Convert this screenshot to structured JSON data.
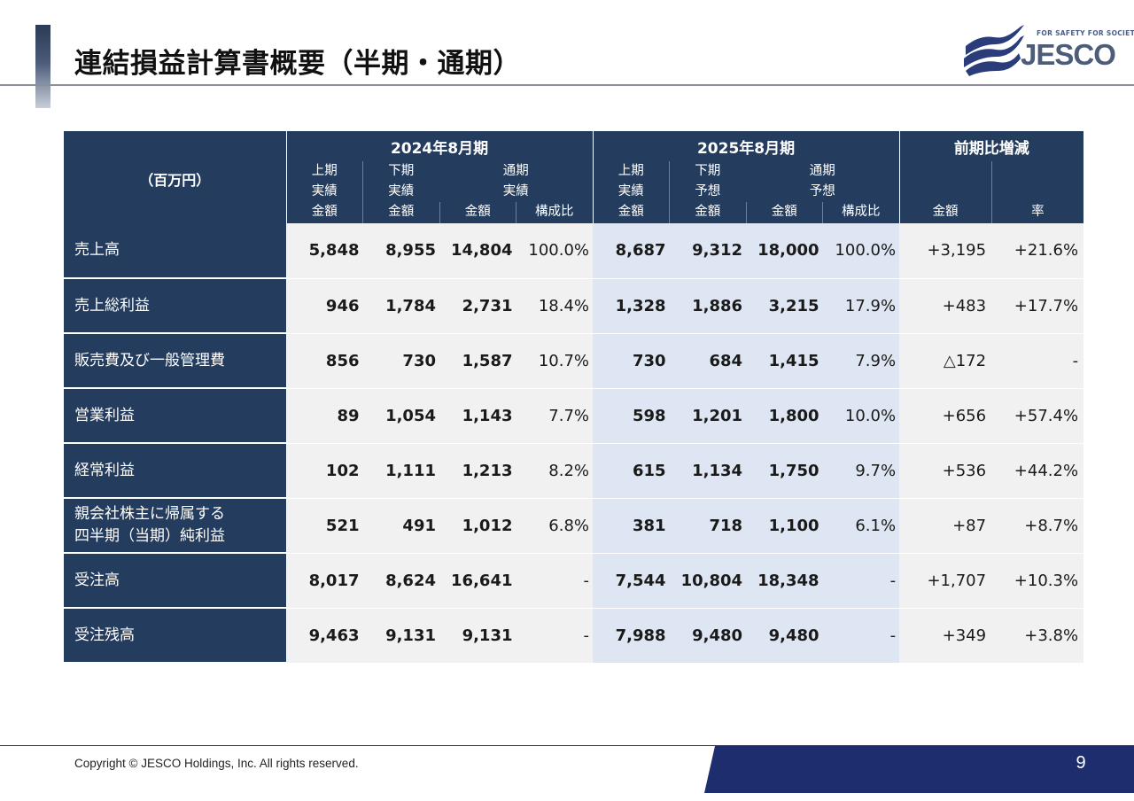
{
  "header": {
    "title": "連結損益計算書概要（半期・通期）",
    "logo": {
      "tagline": "FOR SAFETY FOR SOCIETY",
      "wordmark": "JESCO"
    }
  },
  "table": {
    "unit_label": "（百万円）",
    "groups": [
      "2024年8月期",
      "2025年8月期",
      "前期比増減"
    ],
    "columns": {
      "fy2024": [
        {
          "lines": [
            "上期",
            "実績",
            "金額"
          ]
        },
        {
          "lines": [
            "下期",
            "実績",
            "金額"
          ]
        },
        {
          "top": [
            "通期",
            "実績"
          ],
          "sub": [
            "金額",
            "構成比"
          ]
        }
      ],
      "fy2025": [
        {
          "lines": [
            "上期",
            "実績",
            "金額"
          ]
        },
        {
          "lines": [
            "下期",
            "予想",
            "金額"
          ]
        },
        {
          "top": [
            "通期",
            "予想"
          ],
          "sub": [
            "金額",
            "構成比"
          ]
        }
      ],
      "diff": [
        "金額",
        "率"
      ]
    },
    "rows": [
      {
        "label": [
          "売上高"
        ],
        "v": [
          "5,848",
          "8,955",
          "14,804",
          "100.0%",
          "8,687",
          "9,312",
          "18,000",
          "100.0%",
          "+3,195",
          "+21.6%"
        ]
      },
      {
        "label": [
          "売上総利益"
        ],
        "v": [
          "946",
          "1,784",
          "2,731",
          "18.4%",
          "1,328",
          "1,886",
          "3,215",
          "17.9%",
          "+483",
          "+17.7%"
        ]
      },
      {
        "label": [
          "販売費及び一般管理費"
        ],
        "v": [
          "856",
          "730",
          "1,587",
          "10.7%",
          "730",
          "684",
          "1,415",
          "7.9%",
          "△172",
          "-"
        ]
      },
      {
        "label": [
          "営業利益"
        ],
        "v": [
          "89",
          "1,054",
          "1,143",
          "7.7%",
          "598",
          "1,201",
          "1,800",
          "10.0%",
          "+656",
          "+57.4%"
        ]
      },
      {
        "label": [
          "経常利益"
        ],
        "v": [
          "102",
          "1,111",
          "1,213",
          "8.2%",
          "615",
          "1,134",
          "1,750",
          "9.7%",
          "+536",
          "+44.2%"
        ]
      },
      {
        "label": [
          "親会社株主に帰属する",
          "四半期（当期）純利益"
        ],
        "v": [
          "521",
          "491",
          "1,012",
          "6.8%",
          "381",
          "718",
          "1,100",
          "6.1%",
          "+87",
          "+8.7%"
        ]
      },
      {
        "label": [
          "受注高"
        ],
        "v": [
          "8,017",
          "8,624",
          "16,641",
          "-",
          "7,544",
          "10,804",
          "18,348",
          "-",
          "+1,707",
          "+10.3%"
        ]
      },
      {
        "label": [
          "受注残高"
        ],
        "v": [
          "9,463",
          "9,131",
          "9,131",
          "-",
          "7,988",
          "9,480",
          "9,480",
          "-",
          "+349",
          "+3.8%"
        ]
      }
    ]
  },
  "footer": {
    "copyright": "Copyright © JESCO Holdings, Inc.  All rights reserved.",
    "page_number": "9"
  },
  "colors": {
    "header_navy": "#243c5d",
    "fy2025_highlight": "#dde6f2",
    "cell_gray": "#f1f1f1",
    "footer_band": "#1e2d6e"
  }
}
